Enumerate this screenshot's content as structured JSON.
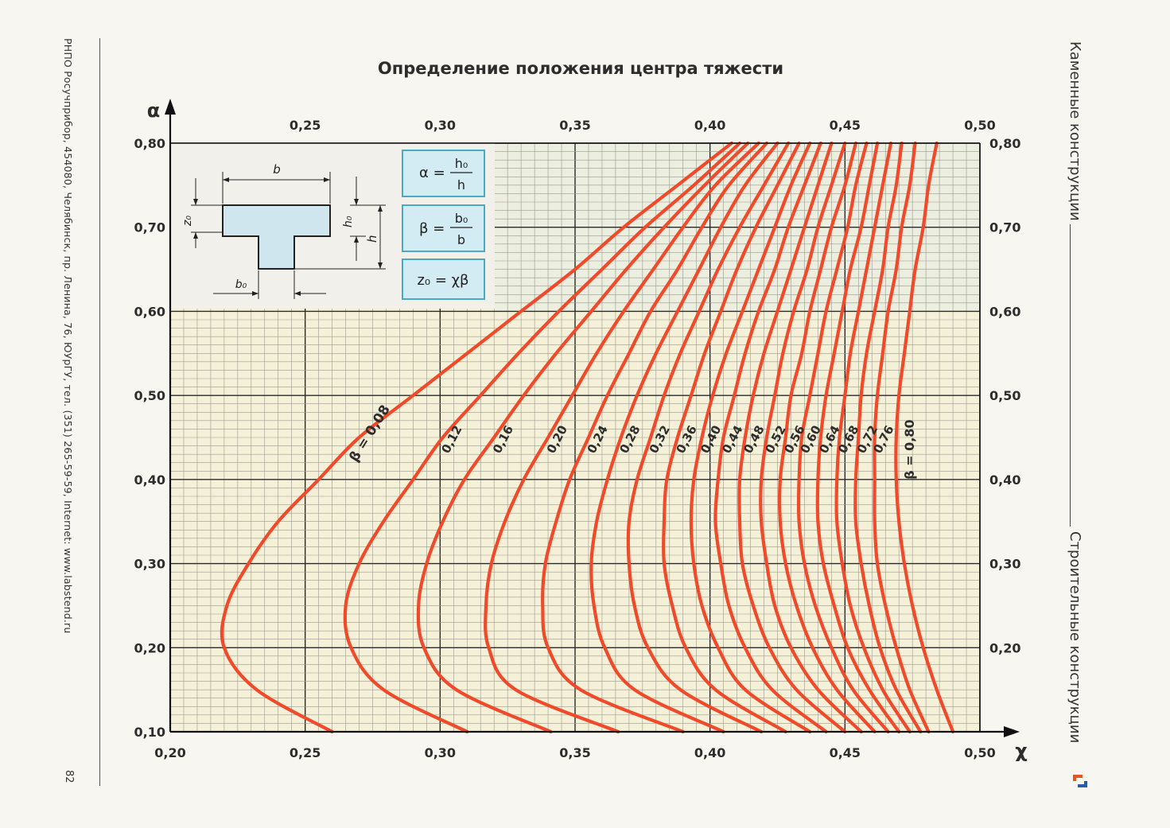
{
  "page": {
    "left_margin_text": "РНПО Росучприбор, 454080, Челябинск, пр. Ленина, 76, ЮУрГУ, тел. (351) 265-59-59, Internet: www.labstend.ru",
    "page_number": "82",
    "section_top": "Каменные конструкции",
    "section_bottom": "Строительные конструкции",
    "accent_color": "#f04a2a",
    "logo_colors": [
      "#e8542a",
      "#2a5aa8"
    ]
  },
  "inset": {
    "diagram_labels": {
      "b": "b",
      "z0": "z₀",
      "h0": "h₀",
      "h": "h",
      "b0": "b₀"
    },
    "formulas": {
      "alpha": {
        "lhs": "α =",
        "num": "h₀",
        "den": "h"
      },
      "beta": {
        "lhs": "β =",
        "num": "b₀",
        "den": "b"
      },
      "z0": "z₀ = χβ"
    },
    "shape_fill": "#cfe6ee"
  },
  "chart_data": {
    "type": "line",
    "title": "Определение положения центра тяжести",
    "xlabel": "χ",
    "ylabel": "α",
    "xlim": [
      0.2,
      0.5
    ],
    "ylim": [
      0.1,
      0.8
    ],
    "x_ticks": [
      "0,20",
      "0,25",
      "0,30",
      "0,35",
      "0,40",
      "0,45",
      "0,50"
    ],
    "x_ticks_top": [
      "0,25",
      "0,30",
      "0,35",
      "0,40",
      "0,45",
      "0,50"
    ],
    "y_ticks": [
      "0,10",
      "0,20",
      "0,30",
      "0,40",
      "0,50",
      "0,60",
      "0,70",
      "0,80"
    ],
    "y_ticks_right": [
      "0,20",
      "0,30",
      "0,40",
      "0,50",
      "0,60",
      "0,70",
      "0,80"
    ],
    "grid": true,
    "line_color": "#f04a2a",
    "alpha_points": [
      0.1,
      0.15,
      0.2,
      0.25,
      0.3,
      0.35,
      0.4,
      0.45,
      0.5,
      0.55,
      0.6,
      0.65,
      0.7,
      0.75,
      0.8
    ],
    "series": [
      {
        "name": "β = 0,08",
        "chi": [
          0.26,
          0.232,
          0.22,
          0.221,
          0.229,
          0.24,
          0.255,
          0.27,
          0.29,
          0.31,
          0.33,
          0.35,
          0.368,
          0.388,
          0.408
        ]
      },
      {
        "name": "0,12",
        "chi": [
          0.31,
          0.279,
          0.267,
          0.265,
          0.27,
          0.279,
          0.29,
          0.301,
          0.315,
          0.329,
          0.344,
          0.36,
          0.376,
          0.394,
          0.411
        ]
      },
      {
        "name": "0,16",
        "chi": [
          0.341,
          0.306,
          0.294,
          0.292,
          0.295,
          0.301,
          0.309,
          0.32,
          0.331,
          0.343,
          0.356,
          0.369,
          0.383,
          0.398,
          0.414
        ]
      },
      {
        "name": "0,20",
        "chi": [
          0.366,
          0.328,
          0.318,
          0.317,
          0.319,
          0.324,
          0.331,
          0.34,
          0.349,
          0.358,
          0.368,
          0.379,
          0.39,
          0.402,
          0.418
        ]
      },
      {
        "name": "0,24",
        "chi": [
          0.39,
          0.352,
          0.34,
          0.338,
          0.339,
          0.343,
          0.348,
          0.355,
          0.362,
          0.37,
          0.378,
          0.388,
          0.397,
          0.407,
          0.421
        ]
      },
      {
        "name": "0,28",
        "chi": [
          0.405,
          0.372,
          0.361,
          0.357,
          0.356,
          0.358,
          0.362,
          0.367,
          0.373,
          0.38,
          0.388,
          0.396,
          0.404,
          0.413,
          0.425
        ]
      },
      {
        "name": "0,32",
        "chi": [
          0.419,
          0.389,
          0.377,
          0.372,
          0.37,
          0.37,
          0.373,
          0.378,
          0.383,
          0.389,
          0.396,
          0.403,
          0.411,
          0.42,
          0.429
        ]
      },
      {
        "name": "0,36",
        "chi": [
          0.428,
          0.402,
          0.391,
          0.386,
          0.383,
          0.383,
          0.384,
          0.388,
          0.393,
          0.398,
          0.404,
          0.41,
          0.417,
          0.425,
          0.433
        ]
      },
      {
        "name": "0,40",
        "chi": [
          0.437,
          0.413,
          0.403,
          0.397,
          0.394,
          0.393,
          0.394,
          0.397,
          0.401,
          0.406,
          0.412,
          0.418,
          0.424,
          0.43,
          0.437
        ]
      },
      {
        "name": "0,44",
        "chi": [
          0.443,
          0.423,
          0.413,
          0.407,
          0.404,
          0.402,
          0.403,
          0.405,
          0.409,
          0.413,
          0.418,
          0.424,
          0.429,
          0.435,
          0.441
        ]
      },
      {
        "name": "0,48",
        "chi": [
          0.45,
          0.432,
          0.422,
          0.416,
          0.412,
          0.411,
          0.411,
          0.413,
          0.416,
          0.42,
          0.425,
          0.43,
          0.435,
          0.44,
          0.445
        ]
      },
      {
        "name": "0,52",
        "chi": [
          0.456,
          0.44,
          0.43,
          0.424,
          0.421,
          0.419,
          0.419,
          0.421,
          0.424,
          0.427,
          0.431,
          0.436,
          0.44,
          0.445,
          0.45
        ]
      },
      {
        "name": "0,56",
        "chi": [
          0.461,
          0.447,
          0.438,
          0.432,
          0.428,
          0.426,
          0.426,
          0.428,
          0.43,
          0.434,
          0.437,
          0.441,
          0.445,
          0.45,
          0.454
        ]
      },
      {
        "name": "0,60",
        "chi": [
          0.466,
          0.453,
          0.445,
          0.439,
          0.435,
          0.433,
          0.433,
          0.434,
          0.437,
          0.44,
          0.443,
          0.447,
          0.451,
          0.454,
          0.458
        ]
      },
      {
        "name": "0,64",
        "chi": [
          0.47,
          0.459,
          0.451,
          0.446,
          0.442,
          0.44,
          0.44,
          0.441,
          0.443,
          0.446,
          0.449,
          0.452,
          0.456,
          0.459,
          0.462
        ]
      },
      {
        "name": "0,68",
        "chi": [
          0.474,
          0.464,
          0.457,
          0.452,
          0.449,
          0.447,
          0.447,
          0.448,
          0.45,
          0.452,
          0.455,
          0.458,
          0.461,
          0.464,
          0.467
        ]
      },
      {
        "name": "0,72",
        "chi": [
          0.478,
          0.469,
          0.463,
          0.459,
          0.456,
          0.454,
          0.454,
          0.455,
          0.456,
          0.458,
          0.461,
          0.464,
          0.466,
          0.469,
          0.471
        ]
      },
      {
        "name": "0,76",
        "chi": [
          0.481,
          0.474,
          0.469,
          0.465,
          0.462,
          0.461,
          0.461,
          0.461,
          0.462,
          0.464,
          0.466,
          0.469,
          0.471,
          0.474,
          0.476
        ]
      },
      {
        "name": "β = 0,80",
        "chi": [
          0.49,
          0.484,
          0.479,
          0.475,
          0.472,
          0.47,
          0.469,
          0.469,
          0.47,
          0.472,
          0.474,
          0.476,
          0.479,
          0.481,
          0.484
        ]
      }
    ]
  }
}
